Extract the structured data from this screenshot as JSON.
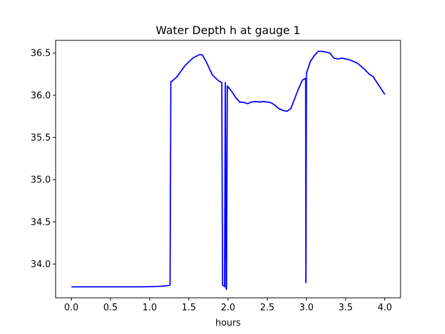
{
  "chart_data": {
    "type": "line",
    "title": "Water Depth h at gauge 1",
    "xlabel": "hours",
    "ylabel": "",
    "xlim": [
      -0.2,
      4.2
    ],
    "ylim": [
      33.6,
      36.65
    ],
    "xticks": [
      0.0,
      0.5,
      1.0,
      1.5,
      2.0,
      2.5,
      3.0,
      3.5,
      4.0
    ],
    "xtick_labels": [
      "0.0",
      "0.5",
      "1.0",
      "1.5",
      "2.0",
      "2.5",
      "3.0",
      "3.5",
      "4.0"
    ],
    "yticks": [
      34.0,
      34.5,
      35.0,
      35.5,
      36.0,
      36.5
    ],
    "ytick_labels": [
      "34.0",
      "34.5",
      "35.0",
      "35.5",
      "36.0",
      "36.5"
    ],
    "grid": false,
    "series": [
      {
        "color": "#0000ff",
        "x": [
          0.0,
          0.5,
          0.9,
          1.1,
          1.2,
          1.26,
          1.27,
          1.29,
          1.35,
          1.45,
          1.55,
          1.63,
          1.67,
          1.72,
          1.8,
          1.88,
          1.92,
          1.93,
          1.95,
          1.955,
          1.965,
          1.975,
          1.98,
          1.99,
          2.0,
          2.05,
          2.1,
          2.15,
          2.2,
          2.25,
          2.3,
          2.35,
          2.4,
          2.45,
          2.5,
          2.55,
          2.6,
          2.65,
          2.7,
          2.75,
          2.8,
          2.85,
          2.9,
          2.95,
          2.99,
          2.993,
          3.0,
          3.05,
          3.1,
          3.15,
          3.2,
          3.25,
          3.3,
          3.35,
          3.4,
          3.45,
          3.5,
          3.55,
          3.6,
          3.65,
          3.7,
          3.75,
          3.8,
          3.85,
          3.9,
          3.95,
          4.0
        ],
        "y": [
          33.73,
          33.73,
          33.73,
          33.735,
          33.74,
          33.75,
          36.16,
          36.17,
          36.22,
          36.35,
          36.44,
          36.48,
          36.48,
          36.4,
          36.24,
          36.17,
          36.15,
          33.75,
          33.74,
          33.73,
          36.15,
          33.71,
          33.7,
          36.11,
          36.1,
          36.04,
          35.97,
          35.92,
          35.915,
          35.9,
          35.92,
          35.925,
          35.92,
          35.925,
          35.92,
          35.91,
          35.88,
          35.84,
          35.82,
          35.81,
          35.84,
          35.96,
          36.08,
          36.18,
          36.2,
          33.78,
          36.26,
          36.4,
          36.47,
          36.52,
          36.52,
          36.51,
          36.5,
          36.44,
          36.43,
          36.44,
          36.43,
          36.42,
          36.4,
          36.38,
          36.34,
          36.3,
          36.25,
          36.22,
          36.15,
          36.08,
          36.01
        ]
      }
    ]
  }
}
